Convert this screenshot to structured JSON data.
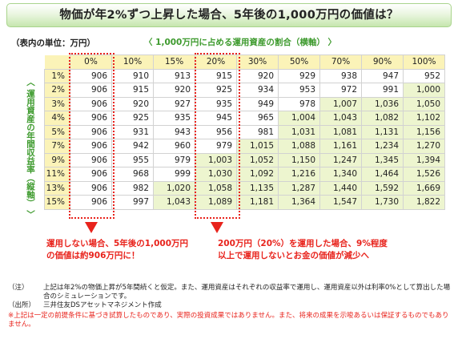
{
  "title": "物価が年2%ずつ上昇した場合、5年後の1,000万円の価値は？",
  "unit_label": "（表内の単位：万円）",
  "horizontal_axis_label": "〈 1,000万円に占める運用資産の割合（横軸） 〉",
  "vertical_axis_label": "〈 運用資産の年間収益率（縦軸） 〉",
  "table": {
    "columns": [
      "0%",
      "10%",
      "15%",
      "20%",
      "30%",
      "50%",
      "70%",
      "90%",
      "100%"
    ],
    "rows": [
      {
        "rate": "1%",
        "values": [
          "906",
          "910",
          "913",
          "915",
          "920",
          "929",
          "938",
          "947",
          "952"
        ]
      },
      {
        "rate": "2%",
        "values": [
          "906",
          "915",
          "920",
          "925",
          "934",
          "953",
          "972",
          "991",
          "1,000"
        ]
      },
      {
        "rate": "3%",
        "values": [
          "906",
          "920",
          "927",
          "935",
          "949",
          "978",
          "1,007",
          "1,036",
          "1,050"
        ]
      },
      {
        "rate": "4%",
        "values": [
          "906",
          "925",
          "935",
          "945",
          "965",
          "1,004",
          "1,043",
          "1,082",
          "1,102"
        ]
      },
      {
        "rate": "5%",
        "values": [
          "906",
          "931",
          "943",
          "956",
          "981",
          "1,031",
          "1,081",
          "1,131",
          "1,156"
        ]
      },
      {
        "rate": "7%",
        "values": [
          "906",
          "942",
          "960",
          "979",
          "1,015",
          "1,088",
          "1,161",
          "1,234",
          "1,270"
        ]
      },
      {
        "rate": "9%",
        "values": [
          "906",
          "955",
          "979",
          "1,003",
          "1,052",
          "1,150",
          "1,247",
          "1,345",
          "1,394"
        ]
      },
      {
        "rate": "11%",
        "values": [
          "906",
          "968",
          "999",
          "1,030",
          "1,092",
          "1,216",
          "1,340",
          "1,464",
          "1,526"
        ]
      },
      {
        "rate": "13%",
        "values": [
          "906",
          "982",
          "1,020",
          "1,058",
          "1,135",
          "1,287",
          "1,440",
          "1,592",
          "1,669"
        ]
      },
      {
        "rate": "15%",
        "values": [
          "906",
          "997",
          "1,043",
          "1,089",
          "1,181",
          "1,364",
          "1,547",
          "1,730",
          "1,822"
        ]
      }
    ]
  },
  "annotations": {
    "left_line1": "運用しない場合、5年後の1,000万円",
    "left_line2": "の価値は約906万円に！",
    "right_line1": "200万円（20%）を運用した場合、9%程度",
    "right_line2": "以上で運用しないとお金の価値が減少へ"
  },
  "notes": {
    "note_key": "（注）",
    "note_text": "上記は年2%の物価上昇が5年間続くと仮定。また、運用資産はそれぞれの収益率で運用し、運用資産以外は利率0%として算出した場合のシミュレーションです。",
    "source_key": "（出所）",
    "source_text": "三井住友DSアセットマネジメント作成",
    "disclaimer": "※上記は一定の前提条件に基づき試算したものであり、実際の投資成果ではありません。また、将来の成果を示唆あるいは保証するものでもありません。"
  },
  "colors": {
    "header_bg": "#fbf3b8",
    "highlight_cell": "#edf5cf",
    "accent_red": "#e8231c",
    "axis_green": "#3d9a2d"
  }
}
